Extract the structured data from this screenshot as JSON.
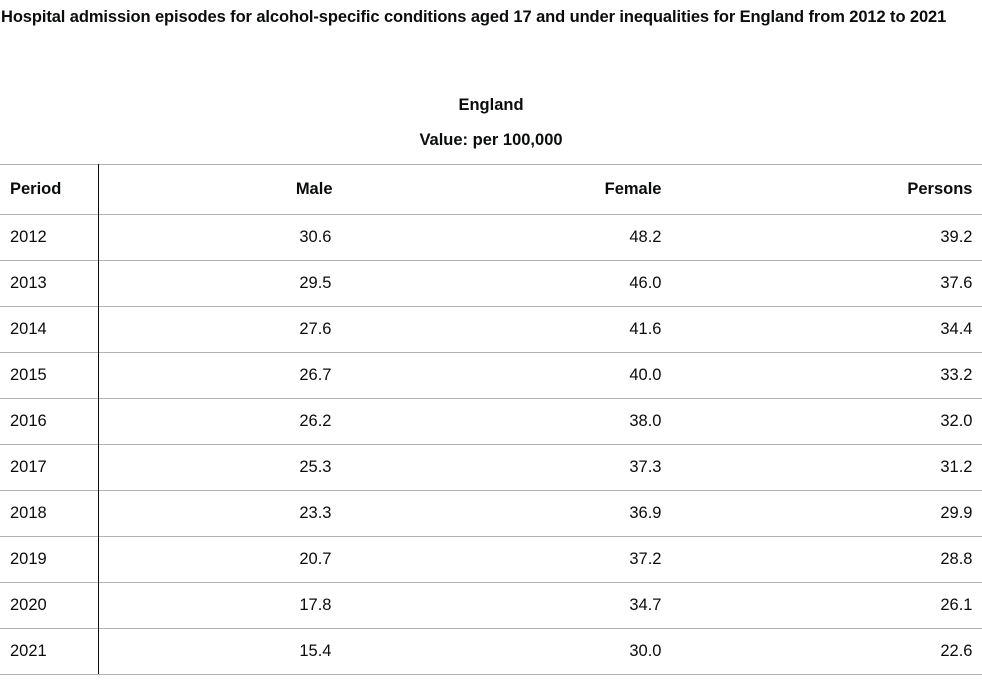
{
  "title": "Hospital admission episodes for alcohol-specific conditions aged 17 and under inequalities for England from 2012 to 2021",
  "area": "England",
  "value_label": "Value:",
  "value_unit": "per 100,000",
  "columns": [
    "Period",
    "Male",
    "Female",
    "Persons"
  ],
  "rows": [
    {
      "period": "2012",
      "male": "30.6",
      "female": "48.2",
      "persons": "39.2"
    },
    {
      "period": "2013",
      "male": "29.5",
      "female": "46.0",
      "persons": "37.6"
    },
    {
      "period": "2014",
      "male": "27.6",
      "female": "41.6",
      "persons": "34.4"
    },
    {
      "period": "2015",
      "male": "26.7",
      "female": "40.0",
      "persons": "33.2"
    },
    {
      "period": "2016",
      "male": "26.2",
      "female": "38.0",
      "persons": "32.0"
    },
    {
      "period": "2017",
      "male": "25.3",
      "female": "37.3",
      "persons": "31.2"
    },
    {
      "period": "2018",
      "male": "23.3",
      "female": "36.9",
      "persons": "29.9"
    },
    {
      "period": "2019",
      "male": "20.7",
      "female": "37.2",
      "persons": "28.8"
    },
    {
      "period": "2020",
      "male": "17.8",
      "female": "34.7",
      "persons": "26.1"
    },
    {
      "period": "2021",
      "male": "15.4",
      "female": "30.0",
      "persons": "22.6"
    }
  ]
}
